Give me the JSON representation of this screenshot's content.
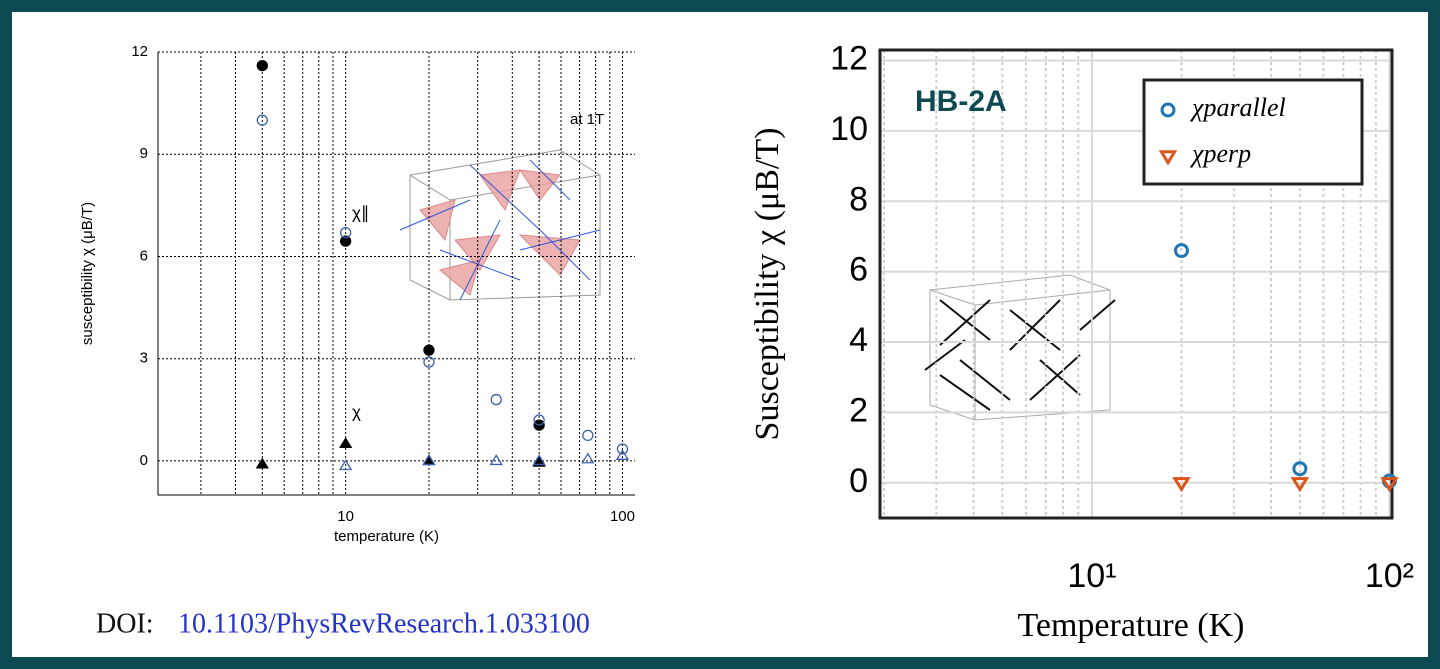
{
  "chart_data": [
    {
      "type": "scatter",
      "xlabel": "temperature (K)",
      "ylabel": "susceptibility χ (μB/T)",
      "annotations": [
        "at 1T",
        "χ∥",
        "χ"
      ],
      "xscale": "log",
      "xlim": [
        2.1,
        111
      ],
      "xticks": [
        10,
        100
      ],
      "ylim": [
        -1,
        12
      ],
      "yticks": [
        0,
        3,
        6,
        9,
        12
      ],
      "grid": true,
      "series": [
        {
          "color": "#000000",
          "marker": "circle",
          "filled": true,
          "x": [
            5,
            10,
            20,
            50
          ],
          "values": [
            11.6,
            6.45,
            3.25,
            1.05
          ]
        },
        {
          "color": "#3b5fb0",
          "marker": "circle",
          "filled": false,
          "x": [
            5,
            10,
            20,
            35,
            50,
            75,
            100
          ],
          "values": [
            10.0,
            6.7,
            2.9,
            1.8,
            1.2,
            0.75,
            0.35
          ]
        },
        {
          "color": "#000000",
          "marker": "triangle",
          "filled": true,
          "x": [
            5,
            10,
            20,
            50
          ],
          "values": [
            -0.1,
            0.5,
            0,
            -0.05
          ]
        },
        {
          "color": "#3b5fb0",
          "marker": "triangle",
          "filled": false,
          "x": [
            10,
            20,
            35,
            50,
            75,
            100
          ],
          "values": [
            -0.15,
            0,
            0,
            0,
            0.05,
            0.15
          ]
        }
      ]
    },
    {
      "type": "scatter",
      "xlabel": "Temperature (K)",
      "ylabel": "Susceptibility χ (μB/T)",
      "annotations": [
        "HB-2A"
      ],
      "xscale": "log",
      "xlim": [
        1.94,
        102
      ],
      "xticks": [
        {
          "value": 10,
          "label": "10¹"
        },
        {
          "value": 100,
          "label": "10²"
        }
      ],
      "ylim": [
        -1,
        12.3
      ],
      "yticks": [
        0,
        2,
        4,
        6,
        8,
        10,
        12
      ],
      "grid": true,
      "legend": "upper right",
      "series": [
        {
          "name": "χparallel",
          "color": "#1f77b4",
          "marker": "circle",
          "filled": false,
          "x": [
            20,
            50,
            100
          ],
          "values": [
            6.6,
            0.4,
            0.05
          ]
        },
        {
          "name": "χperp",
          "color": "#d9541a",
          "marker": "triangle-down",
          "filled": false,
          "x": [
            20,
            50,
            100
          ],
          "values": [
            0,
            0,
            0
          ]
        }
      ]
    }
  ],
  "caption": {
    "prefix": "DOI:",
    "doi": "10.1103/PhysRevResearch.1.033100"
  }
}
